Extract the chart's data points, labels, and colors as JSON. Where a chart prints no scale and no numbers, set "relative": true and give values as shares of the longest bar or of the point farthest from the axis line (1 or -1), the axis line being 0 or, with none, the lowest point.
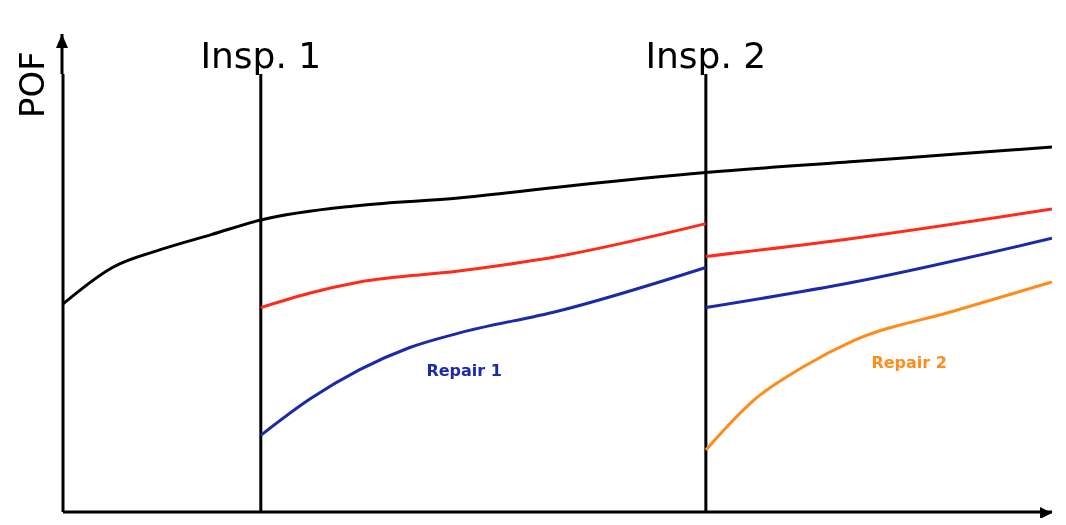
{
  "chart_data": {
    "type": "line",
    "relative": true,
    "ylabel": "POF",
    "categories": [
      null,
      null,
      null,
      null,
      null,
      null,
      null,
      null,
      null,
      null,
      null,
      null,
      null,
      null,
      null,
      null,
      null,
      null,
      null,
      null,
      null
    ],
    "series": [
      {
        "color": "#000000",
        "values": [
          0.57,
          0.67,
          0.72,
          0.76,
          0.8,
          null,
          0.84,
          null,
          0.86,
          null,
          0.89,
          null,
          null,
          0.93,
          null,
          null,
          0.96,
          null,
          0.98,
          null,
          1
        ]
      },
      {
        "color": "#ff2a1a",
        "values": [
          null,
          null,
          null,
          null,
          0.56,
          0.6,
          0.63,
          null,
          0.66,
          null,
          0.7,
          null,
          null,
          0.79,
          null,
          null,
          null,
          null,
          null,
          null,
          null
        ]
      },
      {
        "color": "#ff2a1a",
        "values": [
          null,
          null,
          null,
          null,
          null,
          null,
          null,
          null,
          null,
          null,
          null,
          null,
          null,
          0.7,
          null,
          null,
          0.75,
          null,
          null,
          null,
          0.83
        ]
      },
      {
        "name": "Repair 1",
        "color": "#1a2aa8",
        "values": [
          null,
          null,
          null,
          null,
          0.21,
          0.31,
          0.39,
          0.45,
          0.49,
          null,
          0.55,
          null,
          null,
          0.67,
          null,
          null,
          null,
          null,
          null,
          null,
          null
        ]
      },
      {
        "color": "#1a2aa8",
        "values": [
          null,
          null,
          null,
          null,
          null,
          null,
          null,
          null,
          null,
          null,
          null,
          null,
          null,
          0.56,
          null,
          null,
          0.63,
          null,
          null,
          null,
          0.75
        ]
      },
      {
        "name": "Repair 2",
        "color": "#ff8c1a",
        "values": [
          null,
          null,
          null,
          null,
          null,
          null,
          null,
          null,
          null,
          null,
          null,
          null,
          null,
          0.17,
          0.31,
          0.4,
          0.47,
          null,
          0.55,
          null,
          0.63
        ]
      }
    ],
    "annotations": [
      "Insp. 1",
      "Insp. 2"
    ],
    "marker": "none",
    "line_style": "solid",
    "grid": false,
    "legend": false
  }
}
